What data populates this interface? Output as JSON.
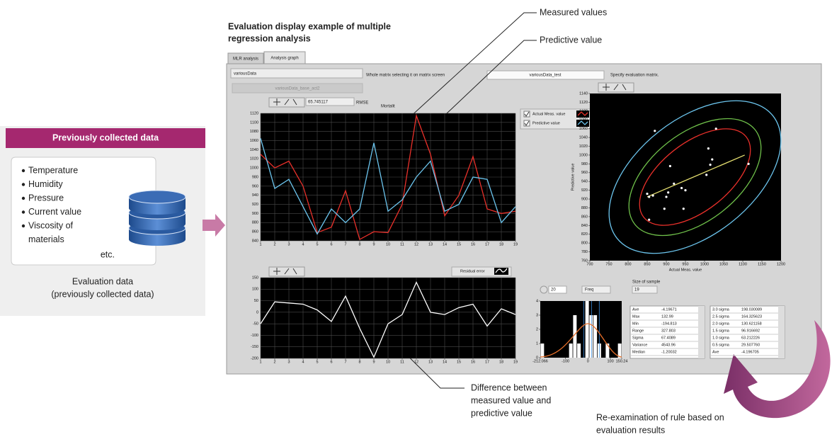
{
  "heading": [
    "Evaluation display example of multiple",
    "regression analysis"
  ],
  "left_panel": {
    "title": "Previously collected data",
    "items": [
      "Temperature",
      "Humidity",
      "Pressure",
      "Current value",
      "Viscosity of",
      "materials"
    ],
    "etc": "etc.",
    "caption": [
      "Evaluation data",
      "(previously collected data)"
    ]
  },
  "callouts": {
    "measured": "Measured values",
    "predictive": "Predictive value",
    "difference": [
      "Difference between",
      "measured value and",
      "predictive value"
    ],
    "reexamination": [
      "Re-examination of rule based on",
      "evaluation results"
    ]
  },
  "window": {
    "tabs": [
      "MLR analysis",
      "Analysis graph"
    ],
    "source_matrix": "variousData",
    "source_note": "Whole matrix selecting it on matrix screen",
    "base_matrix": "variousData_base_act2",
    "eval_matrix": "variousData_test",
    "eval_note": "Specify evaluation matrix.",
    "rmse_value": "65.745117",
    "rmse_label": "RMSE",
    "target": "Mortalit",
    "bins": "20",
    "freq": "Freq",
    "sample_label": "Size of sample",
    "sample_size": "19",
    "stats": [
      [
        "Ave",
        "-4.19671"
      ],
      [
        "Max",
        "132.99"
      ],
      [
        "Min",
        "-194.813"
      ],
      [
        "Range",
        "327.803"
      ],
      [
        "Sigma",
        "67.4089"
      ],
      [
        "Variance",
        "4543.96"
      ],
      [
        "Median",
        "-1.20032"
      ]
    ],
    "sigma_stats": [
      [
        "3.0 sigma",
        "198.030089"
      ],
      [
        "2.5 sigma",
        "164.325623"
      ],
      [
        "2.0 sigma",
        "130.621158"
      ],
      [
        "1.5 sigma",
        "96.916692"
      ],
      [
        "1.0 sigma",
        "63.212226"
      ],
      [
        "0.5 sigma",
        "29.507760"
      ],
      [
        "Ave",
        "-4.196705"
      ]
    ]
  },
  "chart_data": [
    {
      "type": "line",
      "grid": true,
      "x": [
        1,
        2,
        3,
        4,
        5,
        6,
        7,
        8,
        9,
        10,
        11,
        12,
        13,
        14,
        15,
        16,
        17,
        18,
        19
      ],
      "xlim": [
        1,
        19
      ],
      "xticks": [
        1,
        2,
        3,
        4,
        5,
        6,
        7,
        8,
        9,
        10,
        11,
        12,
        13,
        14,
        15,
        16,
        17,
        18,
        19
      ],
      "ylim": [
        840,
        1120
      ],
      "yticks": [
        840,
        860,
        880,
        900,
        920,
        940,
        960,
        980,
        1000,
        1020,
        1040,
        1060,
        1080,
        1100,
        1120
      ],
      "series": [
        {
          "name": "Actual Meas. value",
          "color": "#e8302a",
          "values": [
            1030,
            1000,
            1015,
            960,
            858,
            870,
            950,
            843,
            860,
            858,
            920,
            1115,
            1030,
            895,
            940,
            1025,
            910,
            900,
            905
          ]
        },
        {
          "name": "Predictive value",
          "color": "#6cc5ee",
          "values": [
            1065,
            955,
            975,
            915,
            855,
            910,
            880,
            910,
            1055,
            905,
            930,
            980,
            1015,
            905,
            920,
            980,
            975,
            880,
            915
          ]
        }
      ]
    },
    {
      "type": "line",
      "grid": true,
      "x": [
        1,
        2,
        3,
        4,
        5,
        6,
        7,
        8,
        9,
        10,
        11,
        12,
        13,
        14,
        15,
        16,
        17,
        18,
        19
      ],
      "xlim": [
        1,
        19
      ],
      "xticks": [
        1,
        2,
        3,
        4,
        5,
        6,
        7,
        8,
        9,
        10,
        11,
        12,
        13,
        14,
        15,
        16,
        17,
        18,
        19
      ],
      "ylim": [
        -200,
        150
      ],
      "yticks": [
        -200,
        -150,
        -100,
        -50,
        0,
        50,
        100,
        150
      ],
      "series": [
        {
          "name": "Residual error",
          "color": "#ffffff",
          "values": [
            -50,
            45,
            40,
            35,
            10,
            -40,
            70,
            -70,
            -195,
            -50,
            -10,
            130,
            0,
            -10,
            20,
            35,
            -60,
            15,
            -10
          ]
        }
      ]
    },
    {
      "type": "scatter",
      "grid": false,
      "color": "#ffffff",
      "x_label": "Actual Meas. value",
      "y_label": "Predictive value",
      "x": [
        850,
        855,
        865,
        855,
        895,
        870,
        900,
        905,
        910,
        920,
        940,
        945,
        950,
        1005,
        1010,
        1015,
        1020,
        1030,
        1115
      ],
      "values": [
        912,
        905,
        908,
        853,
        878,
        1055,
        905,
        915,
        975,
        935,
        925,
        878,
        920,
        955,
        1015,
        978,
        990,
        1060,
        980
      ],
      "xlim": [
        700,
        1200
      ],
      "xticks": [
        700,
        750,
        800,
        850,
        900,
        950,
        1000,
        1050,
        1100,
        1150,
        1200
      ],
      "ylim": [
        760,
        1140
      ],
      "yticks": [
        760,
        780,
        800,
        820,
        840,
        860,
        880,
        900,
        920,
        940,
        960,
        980,
        1000,
        1020,
        1040,
        1060,
        1080,
        1100,
        1120,
        1140
      ],
      "trend": {
        "color": "#e6e070",
        "x": [
          850,
          1105
        ],
        "values": [
          905,
          1000
        ]
      }
    },
    {
      "type": "histogram",
      "grid": false,
      "color": "#ffffff",
      "bins": [
        -212.066,
        -193.951,
        -175.835,
        -157.72,
        -139.605,
        -121.489,
        -103.374,
        -85.259,
        -67.143,
        -49.028,
        -30.913,
        -12.797,
        5.318,
        23.433,
        41.549,
        59.664,
        77.779,
        95.895,
        114.01,
        132.125,
        150.24
      ],
      "values": [
        1,
        0,
        0,
        0,
        0,
        0,
        0,
        1,
        3,
        1,
        0,
        4,
        3,
        3,
        1,
        0,
        1,
        0,
        0,
        1
      ],
      "xlim": [
        -212.066,
        150.24
      ],
      "xticks": [
        -212.066,
        -100,
        0,
        100,
        150.24
      ],
      "ylim": [
        0,
        4
      ],
      "yticks": [
        0,
        1,
        2,
        3,
        4
      ]
    }
  ]
}
